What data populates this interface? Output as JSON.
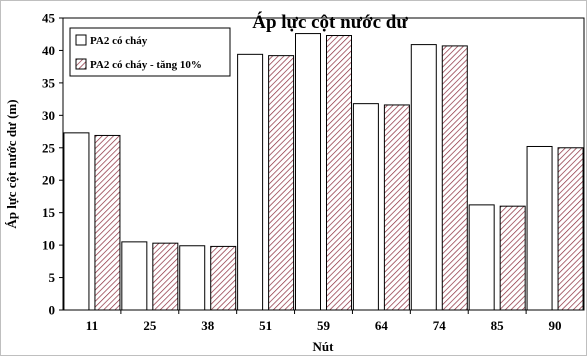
{
  "chart_data": {
    "type": "bar",
    "title": "Áp lực cột nước dư",
    "xlabel": "Nút",
    "ylabel": "Áp lực cột nước dư (m)",
    "ylim": [
      0,
      45
    ],
    "yticks": [
      0,
      5,
      10,
      15,
      20,
      25,
      30,
      35,
      40,
      45
    ],
    "categories": [
      "11",
      "25",
      "38",
      "51",
      "59",
      "64",
      "74",
      "85",
      "90"
    ],
    "legend_position": "top-left",
    "grid": false,
    "series": [
      {
        "name": "PA2 có cháy",
        "values": [
          27.3,
          10.5,
          9.9,
          39.4,
          42.6,
          31.8,
          40.9,
          16.2,
          25.2
        ],
        "fill": "#ffffff",
        "pattern": "none",
        "edge_color": "#000000"
      },
      {
        "name": "PA2 có cháy - tăng 10%",
        "values": [
          26.9,
          10.3,
          9.8,
          39.2,
          42.3,
          31.6,
          40.7,
          16.0,
          25.0
        ],
        "fill": "#ffffff",
        "pattern": "diagonal-hatch",
        "hatch_color": "#8a2a3a",
        "edge_color": "#000000"
      }
    ]
  }
}
